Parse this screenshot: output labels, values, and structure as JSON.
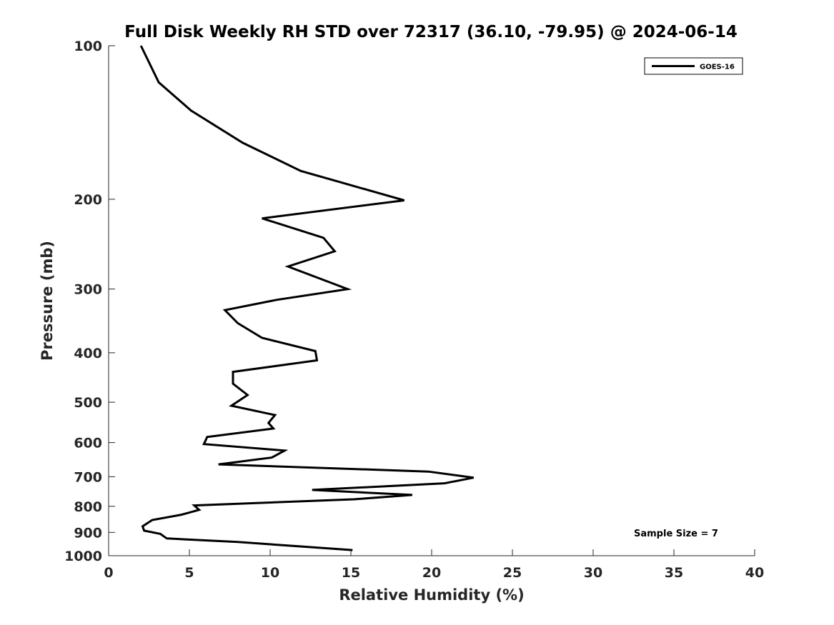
{
  "chart_data": {
    "type": "line",
    "title": "Full Disk Weekly RH STD over 72317 (36.10, -79.95) @ 2024-06-14",
    "xlabel": "Relative Humidity (%)",
    "ylabel": "Pressure (mb)",
    "xlim": [
      0,
      40
    ],
    "ylim": [
      100,
      1000
    ],
    "y_scale": "log",
    "y_reversed": true,
    "xticks": [
      "0",
      "5",
      "10",
      "15",
      "20",
      "25",
      "30",
      "35",
      "40"
    ],
    "yticks": [
      "100",
      "200",
      "300",
      "400",
      "500",
      "600",
      "700",
      "800",
      "900",
      "1000"
    ],
    "grid": false,
    "legend_position": "top-right",
    "series": [
      {
        "name": "GOES-16",
        "color": "#000000",
        "x": [
          2.0,
          3.1,
          5.1,
          8.3,
          11.9,
          18.3,
          9.5,
          13.3,
          14.0,
          11.1,
          14.8,
          10.4,
          7.2,
          8.0,
          9.5,
          12.8,
          12.9,
          7.7,
          7.7,
          8.6,
          7.6,
          10.3,
          9.9,
          10.2,
          6.1,
          5.9,
          10.9,
          10.1,
          6.8,
          19.8,
          22.6,
          20.8,
          12.6,
          18.8,
          15.2,
          5.3,
          5.6,
          4.5,
          2.7,
          2.1,
          2.2,
          3.2,
          3.6,
          8.0,
          15.1
        ],
        "y": [
          100,
          118,
          134,
          155,
          176,
          201,
          218,
          238,
          253,
          271,
          300,
          315,
          330,
          350,
          374,
          397,
          414,
          436,
          460,
          484,
          508,
          530,
          549,
          563,
          585,
          604,
          622,
          642,
          662,
          684,
          703,
          721,
          743,
          760,
          775,
          797,
          813,
          831,
          851,
          876,
          893,
          906,
          925,
          940,
          975
        ]
      }
    ],
    "annotations": [
      "Sample Size = 7"
    ]
  }
}
